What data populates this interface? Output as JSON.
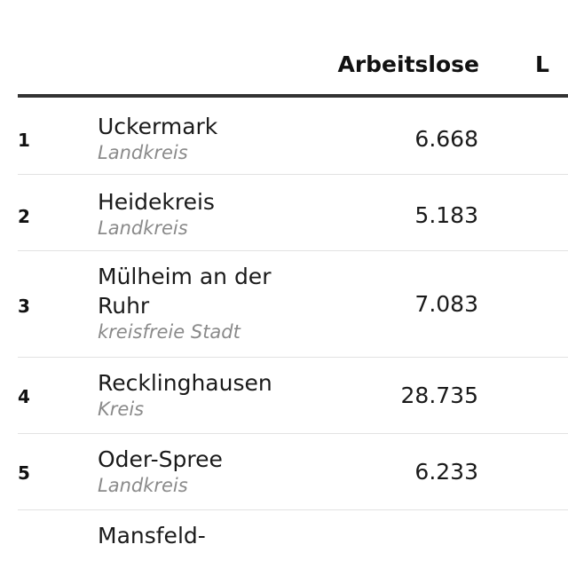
{
  "header": {
    "col_arbeitslose": "Arbeitslose",
    "col_next": "L"
  },
  "rows": [
    {
      "rank": "1",
      "name": "Uckermark",
      "type": "Landkreis",
      "arbeitslose": "6.668"
    },
    {
      "rank": "2",
      "name": "Heidekreis",
      "type": "Landkreis",
      "arbeitslose": "5.183"
    },
    {
      "rank": "3",
      "name": "Mülheim an der Ruhr",
      "type": "kreisfreie Stadt",
      "arbeitslose": "7.083"
    },
    {
      "rank": "4",
      "name": "Recklinghausen",
      "type": "Kreis",
      "arbeitslose": "28.735"
    },
    {
      "rank": "5",
      "name": "Oder-Spree",
      "type": "Landkreis",
      "arbeitslose": "6.233"
    },
    {
      "rank": "",
      "name": "Mansfeld-",
      "type": "",
      "arbeitslose": ""
    }
  ]
}
